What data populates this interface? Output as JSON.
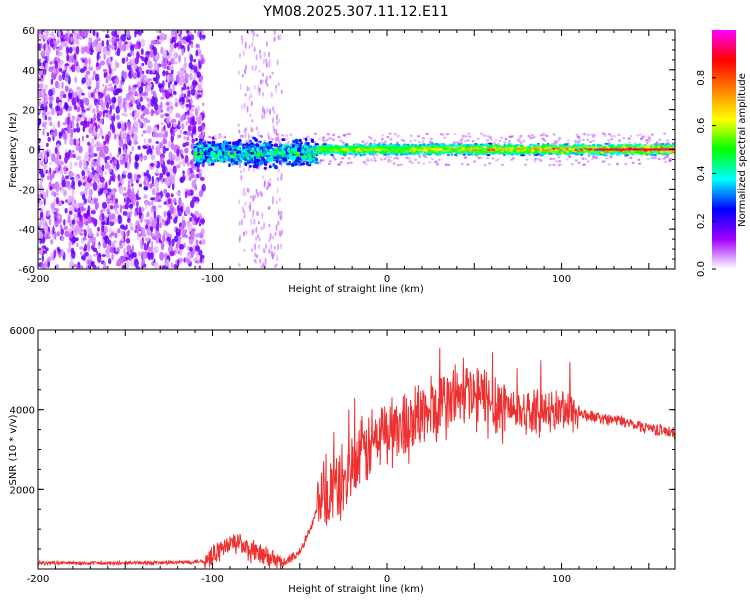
{
  "title": "YM08.2025.307.11.12.E11",
  "chart_data": [
    {
      "type": "heatmap",
      "name": "spectrogram",
      "xlabel": "Height of straight line (km)",
      "ylabel": "Frequency (Hz)",
      "xlim": [
        -200,
        165
      ],
      "ylim": [
        -60,
        60
      ],
      "xticks": [
        -200,
        -100,
        0,
        100
      ],
      "yticks": [
        -60,
        -40,
        -20,
        0,
        20,
        40,
        60
      ],
      "colorbar": {
        "label": "Normalized spectral amplitude",
        "range": [
          0,
          1
        ],
        "ticks": [
          0.0,
          0.2,
          0.4,
          0.6,
          0.8
        ],
        "colors": [
          "#ffffff",
          "#a000ff",
          "#0000ff",
          "#00ffff",
          "#00ff00",
          "#ffff00",
          "#ff8000",
          "#ff0000",
          "#ff00ff"
        ]
      },
      "regions": [
        {
          "x_range": [
            -200,
            -105
          ],
          "frequency_range": [
            -60,
            60
          ],
          "amplitude": "low (scattered noise)"
        },
        {
          "x_range": [
            -85,
            -60
          ],
          "frequency_range": [
            -60,
            60
          ],
          "amplitude": "very low (sparse)"
        },
        {
          "x_range": [
            -110,
            -40
          ],
          "center_frequency": -2,
          "half_width": 8,
          "amplitude": "0.2-0.5"
        },
        {
          "x_range": [
            -40,
            165
          ],
          "center_frequency": 0,
          "half_width": 3,
          "amplitude": "0.4-1.0"
        }
      ]
    },
    {
      "type": "line",
      "name": "snr",
      "xlabel": "Height of straight line (km)",
      "ylabel": "SNR (10 * v/v)",
      "xlim": [
        -200,
        165
      ],
      "ylim": [
        0,
        6000
      ],
      "xticks": [
        -200,
        -100,
        0,
        100
      ],
      "yticks": [
        2000,
        4000,
        6000
      ],
      "color": "#ee3030",
      "series": [
        {
          "name": "SNR",
          "x": [
            -200,
            -180,
            -160,
            -140,
            -120,
            -105,
            -100,
            -95,
            -90,
            -85,
            -80,
            -75,
            -70,
            -65,
            -60,
            -55,
            -50,
            -45,
            -40,
            -35,
            -30,
            -25,
            -20,
            -15,
            -10,
            -5,
            0,
            5,
            10,
            15,
            20,
            25,
            30,
            35,
            40,
            45,
            50,
            55,
            60,
            65,
            70,
            75,
            80,
            85,
            90,
            95,
            100,
            105,
            110,
            120,
            130,
            140,
            150,
            160,
            165
          ],
          "y": [
            150,
            150,
            140,
            160,
            160,
            200,
            350,
            500,
            600,
            700,
            450,
            400,
            300,
            200,
            150,
            250,
            450,
            900,
            1500,
            1800,
            2000,
            2200,
            2500,
            2800,
            3100,
            3300,
            3450,
            3500,
            3600,
            3750,
            3850,
            3950,
            4050,
            4200,
            4350,
            4400,
            4300,
            4250,
            4200,
            4150,
            4050,
            4000,
            3950,
            3950,
            3900,
            3950,
            4000,
            4000,
            3900,
            3800,
            3750,
            3650,
            3550,
            3450,
            3400
          ]
        }
      ]
    }
  ]
}
